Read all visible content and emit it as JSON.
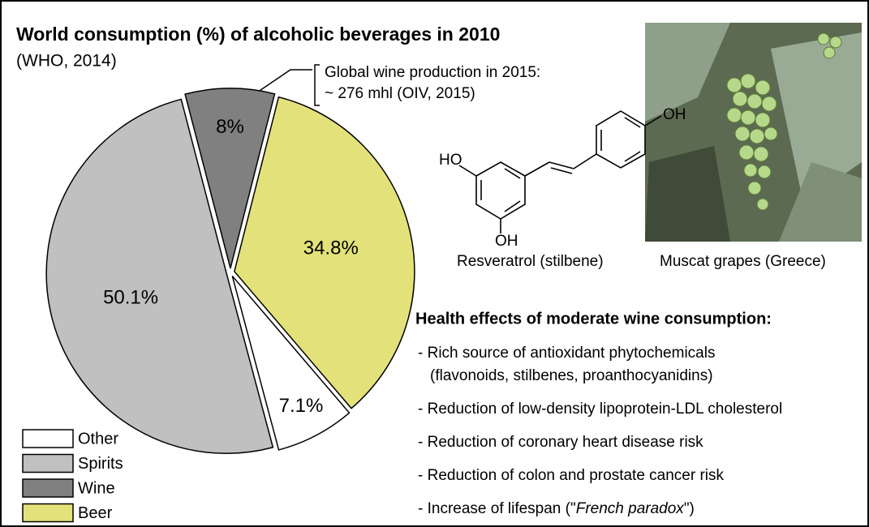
{
  "chart_data": {
    "type": "pie",
    "title": "World consumption (%) of alcoholic beverages in 2010",
    "subtitle": "(WHO, 2014)",
    "categories": [
      "Other",
      "Spirits",
      "Wine",
      "Beer"
    ],
    "values": [
      7.1,
      50.1,
      8,
      34.8
    ],
    "value_labels": [
      "7.1%",
      "50.1%",
      "8%",
      "34.8%"
    ],
    "colors": [
      "#ffffff",
      "#c0c0c0",
      "#808080",
      "#e3e27a"
    ],
    "legend": "bottom-left",
    "annotation": [
      "Global  wine production in 2015:",
      "~ 276 mhl (OIV, 2015)"
    ]
  },
  "panel": {
    "molecule": {
      "left_group": "HO",
      "bottom_group": "OH",
      "right_group": "OH",
      "caption": "Resveratrol (stilbene)"
    },
    "photo_caption": "Muscat grapes (Greece)",
    "health": {
      "heading": "Health effects of moderate wine consumption:",
      "items": [
        "- Rich source of antioxidant phytochemicals",
        "(flavonoids, stilbenes, proanthocyanidins)",
        "- Reduction of low-density lipoprotein-LDL cholesterol",
        "- Reduction of coronary heart disease risk",
        "- Reduction of colon and prostate cancer risk"
      ],
      "last_item": {
        "before": "- Increase of lifespan (\"",
        "emphasis": "French paradox",
        "after": "\")"
      }
    }
  }
}
